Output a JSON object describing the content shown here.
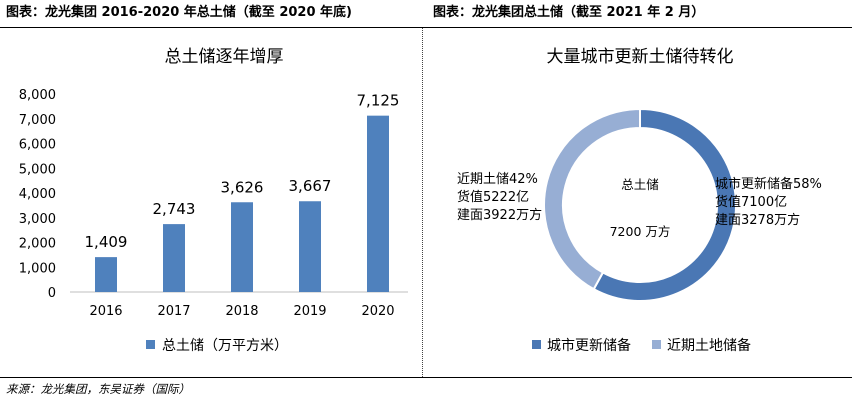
{
  "captions": {
    "left": "图表：龙光集团 2016-2020 年总土储（截至 2020 年底)",
    "right": "图表：龙光集团总土储（截至 2021 年 2 月）"
  },
  "source": "来源：龙光集团，东吴证券（国际）",
  "chart_data": [
    {
      "type": "bar",
      "title": "总土储逐年增厚",
      "categories": [
        "2016",
        "2017",
        "2018",
        "2019",
        "2020"
      ],
      "values": [
        1409,
        2743,
        3626,
        3667,
        7125
      ],
      "value_labels": [
        "1,409",
        "2,743",
        "3,626",
        "3,667",
        "7,125"
      ],
      "y_ticks": [
        "0",
        "1,000",
        "2,000",
        "3,000",
        "4,000",
        "5,000",
        "6,000",
        "7,000",
        "8,000"
      ],
      "ylim": [
        0,
        8000
      ],
      "legend": {
        "label": "总土储（万平方米）",
        "position": "bottom"
      },
      "color": "#4f81bd",
      "grid": false
    },
    {
      "type": "pie",
      "title": "大量城市更新土储待转化",
      "donut": true,
      "labels": [
        "城市更新储备",
        "近期土地储备"
      ],
      "values": [
        58,
        42
      ],
      "colors": [
        "#4a77b4",
        "#97aed4"
      ],
      "center_labels": [
        "总土储",
        "7200 万方"
      ],
      "annotations": {
        "right": [
          "城市更新储备58%",
          "货值7100亿",
          "建面3278万方"
        ],
        "left": [
          "近期土储42%",
          "货值5222亿",
          "建面3922万方"
        ]
      },
      "legend": {
        "labels": [
          "城市更新储备",
          "近期土地储备"
        ],
        "position": "bottom"
      }
    }
  ]
}
